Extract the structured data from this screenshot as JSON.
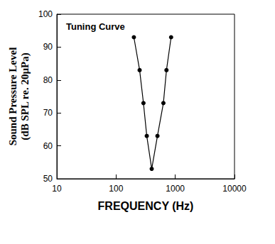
{
  "chart_data": {
    "type": "line",
    "title": "Tuning Curve",
    "x_label": "FREQUENCY (Hz)",
    "y_label": "Sound Pressure Level\n(dB SPL re. 20µPa)",
    "x": [
      200,
      250,
      290,
      330,
      400,
      500,
      630,
      710,
      850
    ],
    "values": [
      93,
      83,
      73,
      63,
      53,
      63,
      73,
      83,
      93
    ],
    "color": "#000000",
    "marker": "circle",
    "line_style": "solid",
    "log": "x",
    "xlim": [
      10,
      10000
    ],
    "xticks": [
      10,
      100,
      1000,
      10000
    ],
    "ylim": [
      50,
      100
    ],
    "yticks": [
      50,
      60,
      70,
      80,
      90,
      100
    ],
    "grid": false
  }
}
